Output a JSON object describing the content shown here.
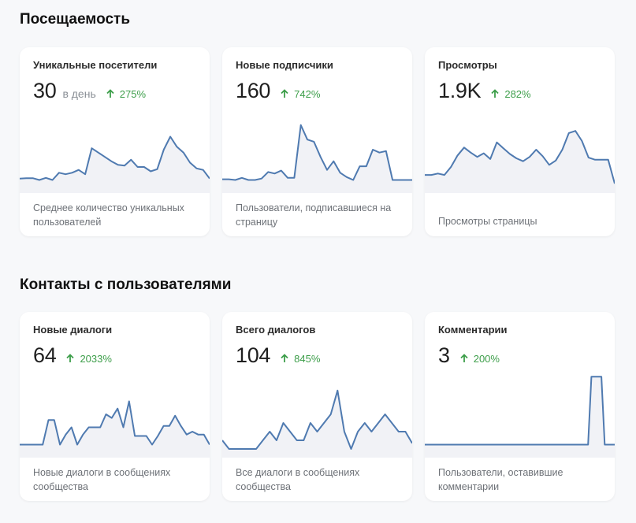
{
  "sections": [
    {
      "title": "Посещаемость",
      "cards": [
        {
          "title": "Уникальные посетители",
          "value": "30",
          "unit": "в день",
          "change": "275%",
          "desc": "Среднее количество уникальных пользователей",
          "series": [
            20,
            20.5,
            20.5,
            18,
            21,
            18,
            28,
            26,
            28,
            32,
            26,
            62,
            56,
            50,
            44,
            39,
            38,
            46,
            36,
            36,
            30,
            33,
            60,
            78,
            64,
            56,
            42,
            34,
            32,
            20
          ]
        },
        {
          "title": "Новые подписчики",
          "value": "160",
          "unit": "",
          "change": "742%",
          "desc": "Пользователи, подписавшиеся на страницу",
          "series": [
            19,
            19,
            18,
            21,
            18,
            18,
            20,
            29,
            27,
            31,
            21,
            21,
            94,
            74,
            71,
            50,
            32,
            44,
            28,
            22,
            18,
            37,
            37,
            60,
            56,
            58,
            18,
            18,
            18,
            18
          ]
        },
        {
          "title": "Просмотры",
          "value": "1.9K",
          "unit": "",
          "change": "282%",
          "desc": "Просмотры страницы",
          "series": [
            25,
            25,
            27,
            25,
            36,
            52,
            63,
            56,
            50,
            55,
            47,
            70,
            62,
            54,
            48,
            44,
            50,
            60,
            51,
            39,
            45,
            60,
            83,
            86,
            72,
            49,
            46,
            46,
            46,
            13
          ]
        }
      ]
    },
    {
      "title": "Контакты с пользователями",
      "cards": [
        {
          "title": "Новые диалоги",
          "value": "64",
          "unit": "",
          "change": "2033%",
          "desc": "Новые диалоги в сообщениях сообщества",
          "series": [
            18,
            18,
            18,
            18,
            18,
            52,
            52,
            18,
            32,
            42,
            18,
            32,
            42,
            42,
            42,
            60,
            55,
            68,
            42,
            78,
            30,
            30,
            30,
            18,
            30,
            44,
            44,
            58,
            44,
            32,
            36,
            32,
            32,
            18
          ]
        },
        {
          "title": "Всего диалогов",
          "value": "104",
          "unit": "",
          "change": "845%",
          "desc": "Все диалоги в сообщениях сообщества",
          "series": [
            24,
            12,
            12,
            12,
            12,
            12,
            24,
            36,
            24,
            48,
            36,
            24,
            24,
            48,
            36,
            48,
            60,
            93,
            36,
            12,
            36,
            48,
            36,
            48,
            60,
            48,
            36,
            36,
            20
          ]
        },
        {
          "title": "Комментарии",
          "value": "3",
          "unit": "",
          "change": "200%",
          "desc": "Пользователи, оставившие комментарии",
          "series": [
            18,
            18,
            18,
            18,
            18,
            18,
            18,
            18,
            18,
            18,
            18,
            18,
            18,
            18,
            18,
            18,
            18,
            18,
            18,
            18,
            18,
            18,
            18,
            18,
            18,
            18,
            18,
            18,
            18,
            18,
            18,
            18,
            18,
            18,
            18,
            18,
            18,
            18,
            18,
            18,
            18,
            18,
            18,
            18,
            18,
            18,
            18,
            18,
            18,
            18,
            112,
            112,
            112,
            112,
            18,
            18,
            18,
            18
          ]
        }
      ]
    }
  ]
}
